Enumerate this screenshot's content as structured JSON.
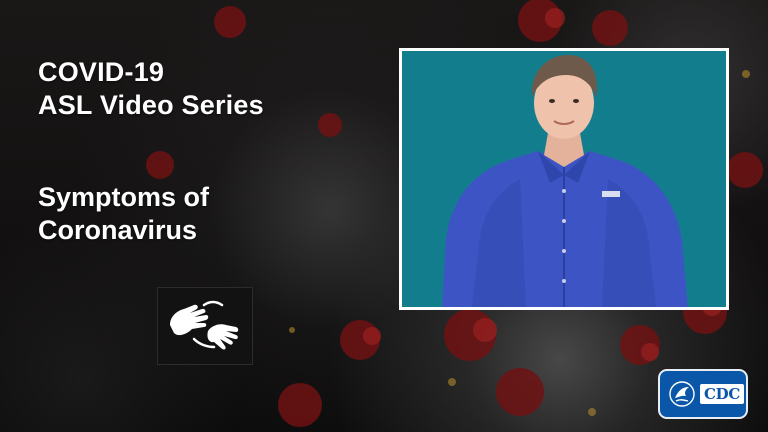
{
  "title": {
    "line1": "COVID-19",
    "line2": "ASL Video Series"
  },
  "subtitle": {
    "line1": "Symptoms of",
    "line2": "Coronavirus"
  },
  "icons": {
    "asl": "asl-signing-hands-icon",
    "hhs": "hhs-eagle-icon"
  },
  "logo": {
    "text": "CDC"
  },
  "colors": {
    "video_background": "#127e8d",
    "shirt": "#3d55c4",
    "cdc_blue": "#0a56a8",
    "virus_red": "#7a1414"
  }
}
